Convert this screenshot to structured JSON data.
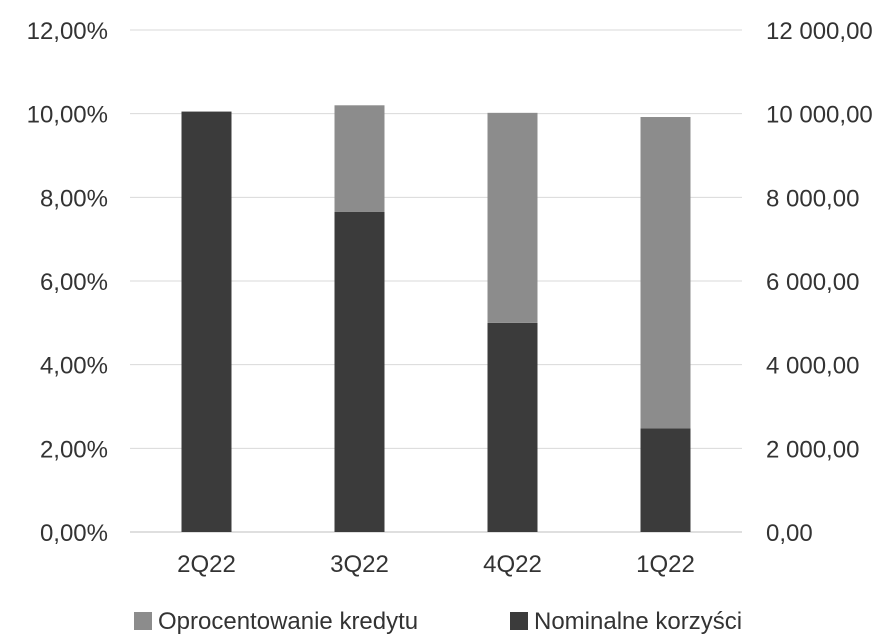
{
  "chart_data": {
    "type": "bar",
    "stacked": true,
    "categories": [
      "2Q22",
      "3Q22",
      "4Q22",
      "1Q22"
    ],
    "series": [
      {
        "name": "Nominalne korzyści",
        "axis": "right",
        "color": "#3b3b3b",
        "values": [
          10050,
          7650,
          5000,
          2480
        ]
      },
      {
        "name": "Oprocentowanie kredytu",
        "axis": "right",
        "color": "#8c8c8c",
        "values": [
          0,
          2550,
          5020,
          7440
        ]
      }
    ],
    "left_axis": {
      "ylim": [
        0,
        0.12
      ],
      "ticks": [
        "0,00%",
        "2,00%",
        "4,00%",
        "6,00%",
        "8,00%",
        "10,00%",
        "12,00%"
      ]
    },
    "right_axis": {
      "ylim": [
        0,
        12000
      ],
      "ticks": [
        "0,00",
        "2 000,00",
        "4 000,00",
        "6 000,00",
        "8 000,00",
        "10 000,00",
        "12 000,00"
      ]
    },
    "grid": true,
    "legend": {
      "position": "bottom",
      "items": [
        "Oprocentowanie kredytu",
        "Nominalne korzyści"
      ]
    }
  }
}
